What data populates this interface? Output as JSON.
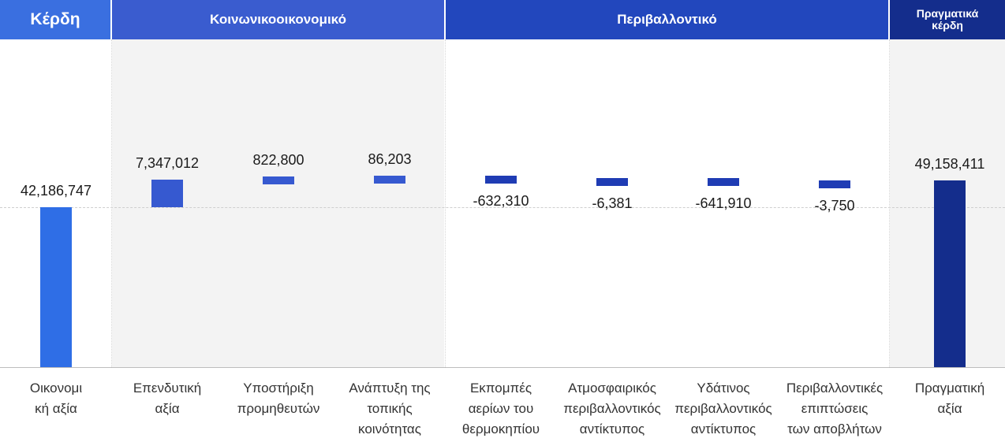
{
  "headers": {
    "gain": "Κέρδη",
    "socio": "Κοινωνικοοικονομικό",
    "env": "Περιβαλλοντικό",
    "actual": "Πραγματικά κέρδη"
  },
  "colors": {
    "gain": "#2f6ee6",
    "socio": "#3659d0",
    "env": "#1f3cb4",
    "actual": "#142d8c"
  },
  "chart_data": {
    "type": "bar",
    "subtype": "waterfall",
    "categories": [
      "Οικονομι\nκή αξία",
      "Επενδυτική\nαξία",
      "Υποστήριξη\nπρομηθευτών",
      "Ανάπτυξη της\nτοπικής\nκοινότητας",
      "Εκπομπές\nαερίων του\nθερμοκηπίου",
      "Ατμοσφαιρικός\nπεριβαλλοντικός\nαντίκτυπος",
      "Υδάτινος\nπεριβαλλοντικός\nαντίκτυπος",
      "Περιβαλλοντικές\nεπιπτώσεις\nτων αποβλήτων",
      "Πραγματική\nαξία"
    ],
    "values": [
      42186747,
      7347012,
      822800,
      86203,
      -632310,
      -6381,
      -641910,
      -3750,
      49158411
    ],
    "value_labels": [
      "42,186,747",
      "7,347,012",
      "822,800",
      "86,203",
      "-632,310",
      "-6,381",
      "-641,910",
      "-3,750",
      "49,158,411"
    ],
    "groups": [
      "gain",
      "socio",
      "socio",
      "socio",
      "env",
      "env",
      "env",
      "env",
      "actual"
    ],
    "title": "",
    "xlabel": "",
    "ylabel": "",
    "grid": true,
    "legend": "none"
  }
}
